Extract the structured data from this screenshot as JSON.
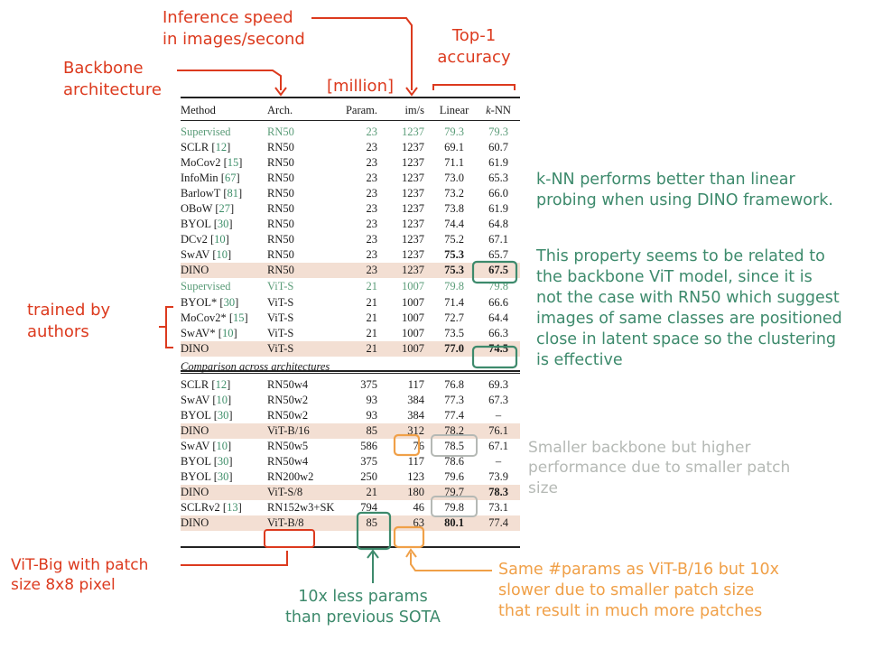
{
  "table": {
    "headers": {
      "method": "Method",
      "arch": "Arch.",
      "param": "Param.",
      "speed": "im/s",
      "linear": "Linear",
      "knn_k": "k",
      "knn_rest": "-NN"
    },
    "rows": [
      {
        "method": "Supervised",
        "ref": "",
        "arch": "RN50",
        "param": "23",
        "speed": "1237",
        "linear": "79.3",
        "knn": "79.3",
        "sup": true
      },
      {
        "method": "SCLR",
        "ref": "12",
        "arch": "RN50",
        "param": "23",
        "speed": "1237",
        "linear": "69.1",
        "knn": "60.7"
      },
      {
        "method": "MoCov2",
        "ref": "15",
        "arch": "RN50",
        "param": "23",
        "speed": "1237",
        "linear": "71.1",
        "knn": "61.9"
      },
      {
        "method": "InfoMin",
        "ref": "67",
        "arch": "RN50",
        "param": "23",
        "speed": "1237",
        "linear": "73.0",
        "knn": "65.3"
      },
      {
        "method": "BarlowT",
        "ref": "81",
        "arch": "RN50",
        "param": "23",
        "speed": "1237",
        "linear": "73.2",
        "knn": "66.0"
      },
      {
        "method": "OBoW",
        "ref": "27",
        "arch": "RN50",
        "param": "23",
        "speed": "1237",
        "linear": "73.8",
        "knn": "61.9"
      },
      {
        "method": "BYOL",
        "ref": "30",
        "arch": "RN50",
        "param": "23",
        "speed": "1237",
        "linear": "74.4",
        "knn": "64.8"
      },
      {
        "method": "DCv2",
        "ref": "10",
        "arch": "RN50",
        "param": "23",
        "speed": "1237",
        "linear": "75.2",
        "knn": "67.1"
      },
      {
        "method": "SwAV",
        "ref": "10",
        "arch": "RN50",
        "param": "23",
        "speed": "1237",
        "linear": "75.3",
        "knn": "65.7",
        "boldLinear": true
      },
      {
        "method": "DINO",
        "ref": "",
        "arch": "RN50",
        "param": "23",
        "speed": "1237",
        "linear": "75.3",
        "knn": "67.5",
        "hl": true,
        "boldLinear": true,
        "boldKnn": true
      },
      {
        "method": "Supervised",
        "ref": "",
        "arch": "ViT-S",
        "param": "21",
        "speed": "1007",
        "linear": "79.8",
        "knn": "79.8",
        "sup": true
      },
      {
        "method": "BYOL*",
        "ref": "30",
        "arch": "ViT-S",
        "param": "21",
        "speed": "1007",
        "linear": "71.4",
        "knn": "66.6"
      },
      {
        "method": "MoCov2*",
        "ref": "15",
        "arch": "ViT-S",
        "param": "21",
        "speed": "1007",
        "linear": "72.7",
        "knn": "64.4"
      },
      {
        "method": "SwAV*",
        "ref": "10",
        "arch": "ViT-S",
        "param": "21",
        "speed": "1007",
        "linear": "73.5",
        "knn": "66.3"
      },
      {
        "method": "DINO",
        "ref": "",
        "arch": "ViT-S",
        "param": "21",
        "speed": "1007",
        "linear": "77.0",
        "knn": "74.5",
        "hl": true,
        "boldLinear": true,
        "boldKnn": true
      },
      {
        "section": "Comparison across architectures"
      },
      {
        "method": "SCLR",
        "ref": "12",
        "arch": "RN50w4",
        "param": "375",
        "speed": "117",
        "linear": "76.8",
        "knn": "69.3"
      },
      {
        "method": "SwAV",
        "ref": "10",
        "arch": "RN50w2",
        "param": "93",
        "speed": "384",
        "linear": "77.3",
        "knn": "67.3"
      },
      {
        "method": "BYOL",
        "ref": "30",
        "arch": "RN50w2",
        "param": "93",
        "speed": "384",
        "linear": "77.4",
        "knn": "–"
      },
      {
        "method": "DINO",
        "ref": "",
        "arch": "ViT-B/16",
        "param": "85",
        "speed": "312",
        "linear": "78.2",
        "knn": "76.1",
        "hl": true
      },
      {
        "method": "SwAV",
        "ref": "10",
        "arch": "RN50w5",
        "param": "586",
        "speed": "76",
        "linear": "78.5",
        "knn": "67.1"
      },
      {
        "method": "BYOL",
        "ref": "30",
        "arch": "RN50w4",
        "param": "375",
        "speed": "117",
        "linear": "78.6",
        "knn": "–"
      },
      {
        "method": "BYOL",
        "ref": "30",
        "arch": "RN200w2",
        "param": "250",
        "speed": "123",
        "linear": "79.6",
        "knn": "73.9"
      },
      {
        "method": "DINO",
        "ref": "",
        "arch": "ViT-S/8",
        "param": "21",
        "speed": "180",
        "linear": "79.7",
        "knn": "78.3",
        "hl": true,
        "boldKnn": true
      },
      {
        "method": "SCLRv2",
        "ref": "13",
        "arch": "RN152w3+SK",
        "param": "794",
        "speed": "46",
        "linear": "79.8",
        "knn": "73.1"
      },
      {
        "method": "DINO",
        "ref": "",
        "arch": "ViT-B/8",
        "param": "85",
        "speed": "63",
        "linear": "80.1",
        "knn": "77.4",
        "hl": true,
        "boldLinear": true
      }
    ]
  },
  "annotations": {
    "inference_speed": "Inference speed\nin images/second",
    "backbone": "Backbone\narchitecture",
    "million": "[million]",
    "top1": "Top-1\naccuracy",
    "trained_by": "trained\nby\nauthors",
    "knn_note": "k-NN performs better than linear\nprobing when using DINO framework.",
    "property_note": "This property seems to be related to\nthe backbone ViT model, since it is\nnot the case with RN50 which suggest\nimages of same classes are positioned\nclose in latent space so the clustering\nis effective",
    "smaller_backbone": "Smaller backbone but higher\nperformance due to smaller patch\nsize",
    "vit_big": "ViT-Big with patch\nsize 8x8 pixel",
    "less_params": "10x less params\nthan previous SOTA",
    "same_params": "Same #params as ViT-B/16 but 10x\nslower due to smaller patch size\nthat result in much more patches"
  },
  "colors": {
    "red": "#dc3a1e",
    "green": "#3d8a6c",
    "gray": "#b5b9b5",
    "orange": "#f0a048",
    "highlight": "#f3dfd3"
  }
}
